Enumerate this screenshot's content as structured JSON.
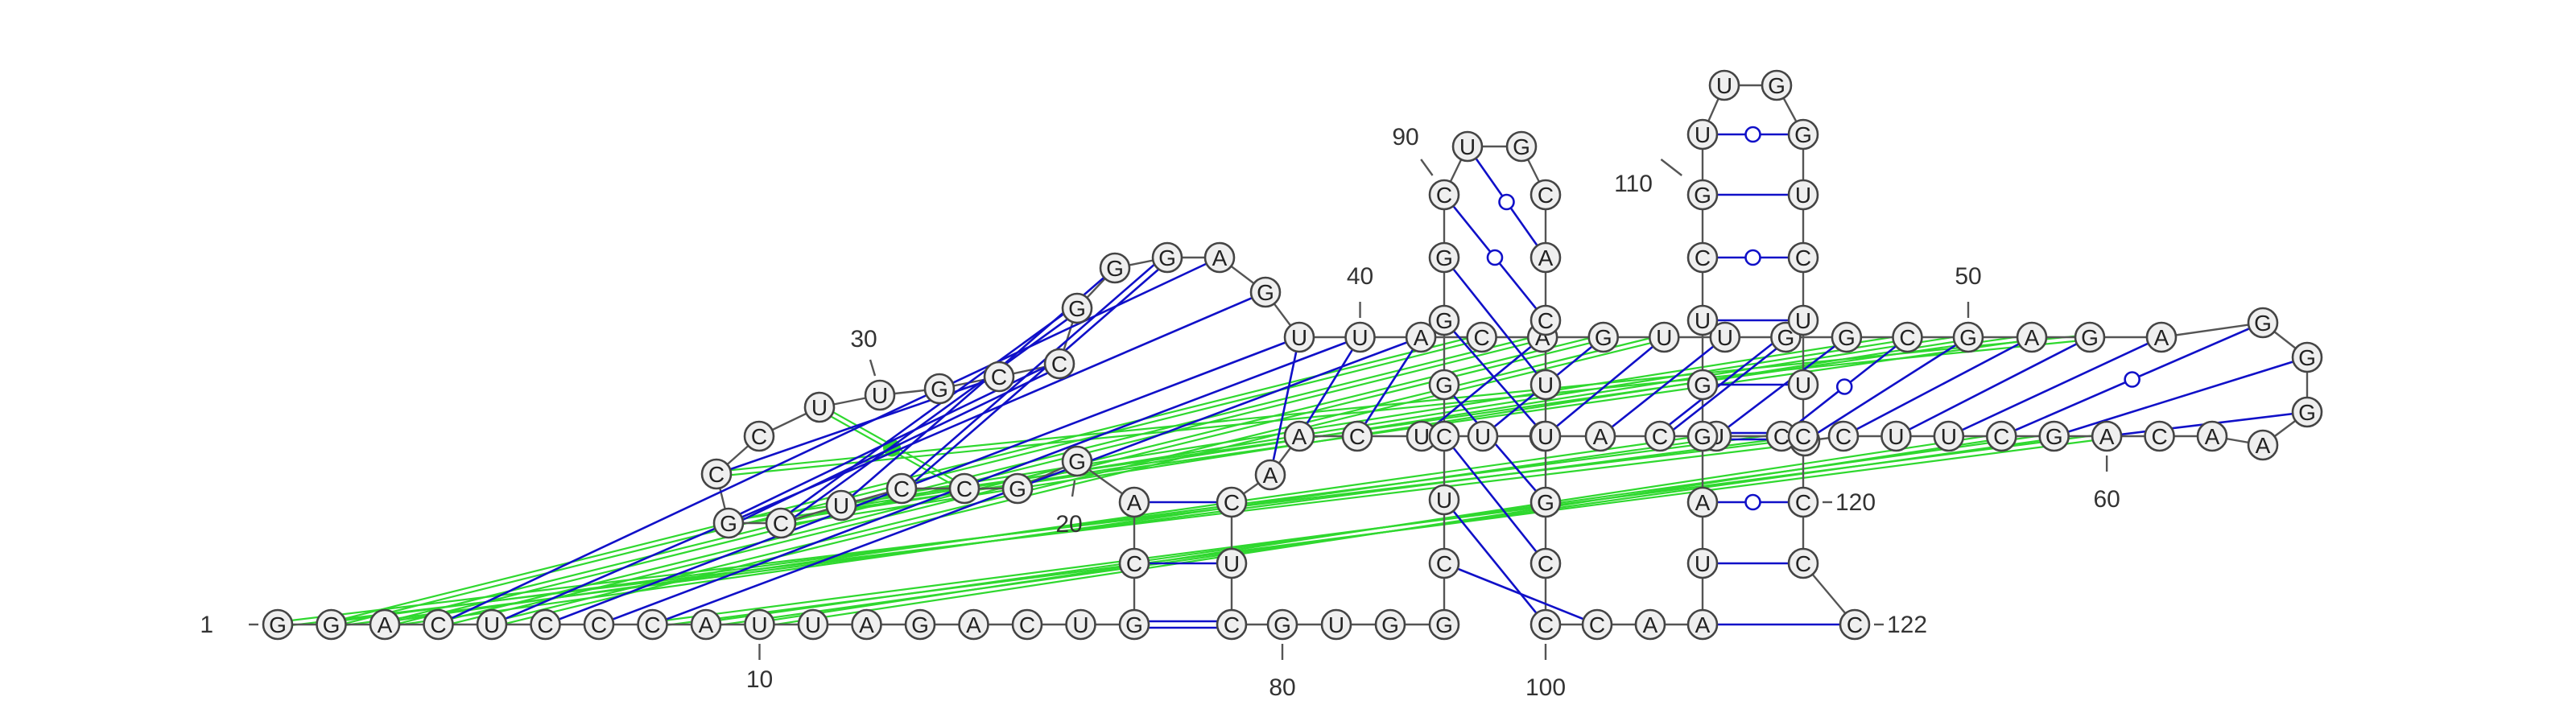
{
  "diagram": {
    "type": "rna-secondary-structure",
    "sequence": "GGACUCCCAUUAGACUGCAGGCCUCGCCUUGCCGGGAGUUACAGUUGGCGAGAGGGAACAGCUUCUCUCAGUUCAACUCGUGGCUCGGGCUGCACUUGCCCAAUAGGUCGUUGGUCUUCCCC",
    "numbering": [
      {
        "label": "1",
        "pos": 1
      },
      {
        "label": "10",
        "pos": 10
      },
      {
        "label": "20",
        "pos": 20
      },
      {
        "label": "30",
        "pos": 30
      },
      {
        "label": "40",
        "pos": 40
      },
      {
        "label": "50",
        "pos": 50
      },
      {
        "label": "60",
        "pos": 60
      },
      {
        "label": "80",
        "pos": 80
      },
      {
        "label": "90",
        "pos": 90
      },
      {
        "label": "100",
        "pos": 100
      },
      {
        "label": "110",
        "pos": 110
      },
      {
        "label": "120",
        "pos": 120
      },
      {
        "label": "122",
        "pos": 122
      }
    ],
    "colors": {
      "canonical_pair": "#1010c8",
      "noncanonical_pair": "#2fd82f",
      "backbone": "#555555",
      "nucleotide_fill": "#efefef"
    }
  }
}
